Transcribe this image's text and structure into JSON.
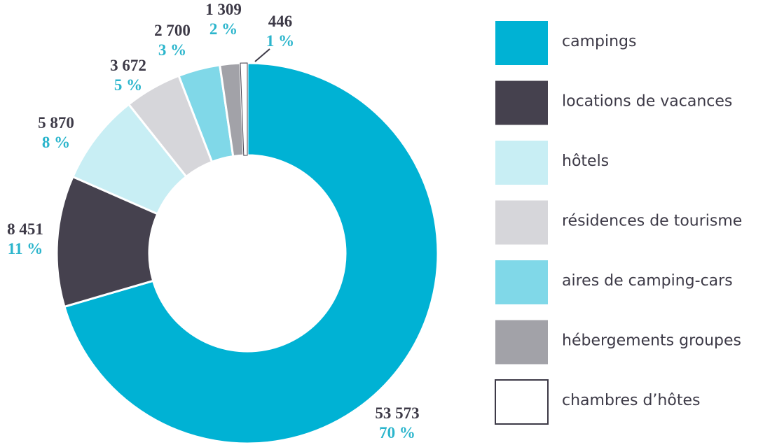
{
  "chart_data": {
    "type": "donut",
    "categories": [
      "campings",
      "locations de vacances",
      "hôtels",
      "résidences de tourisme",
      "aires de camping-cars",
      "hébergements groupes",
      "chambres d’hôtes"
    ],
    "values": [
      53573,
      8451,
      5870,
      3672,
      2700,
      1309,
      446
    ],
    "value_labels": [
      "53 573",
      "8 451",
      "5 870",
      "3 672",
      "2 700",
      "1 309",
      "446"
    ],
    "percentages": [
      70,
      11,
      8,
      5,
      3,
      2,
      1
    ],
    "percentage_labels": [
      "70 %",
      "11 %",
      "8 %",
      "5 %",
      "3 %",
      "2 %",
      "1 %"
    ],
    "colors": [
      "#00b2d4",
      "#45414e",
      "#c8eef4",
      "#d6d6da",
      "#80d8e8",
      "#a2a2a8",
      "#ffffff"
    ],
    "legend": "right"
  }
}
